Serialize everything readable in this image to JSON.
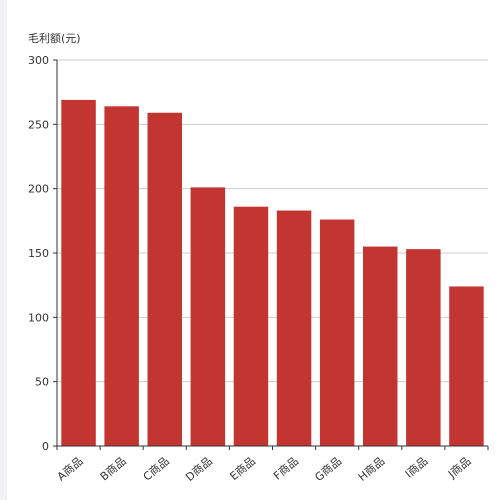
{
  "colors": {
    "bar": "#c23531",
    "axis": "#333333",
    "grid": "#cccccc",
    "side_strip": "#f2f2f6"
  },
  "chart_data": {
    "type": "bar",
    "title": "",
    "xlabel": "",
    "ylabel": "毛利额(元)",
    "categories": [
      "A商品",
      "B商品",
      "C商品",
      "D商品",
      "E商品",
      "F商品",
      "G商品",
      "H商品",
      "I商品",
      "J商品"
    ],
    "values": [
      269,
      264,
      259,
      201,
      186,
      183,
      176,
      155,
      153,
      124
    ],
    "ylim": [
      0,
      300
    ],
    "yticks": [
      0,
      50,
      100,
      150,
      200,
      250,
      300
    ],
    "grid": true,
    "legend": "none"
  }
}
